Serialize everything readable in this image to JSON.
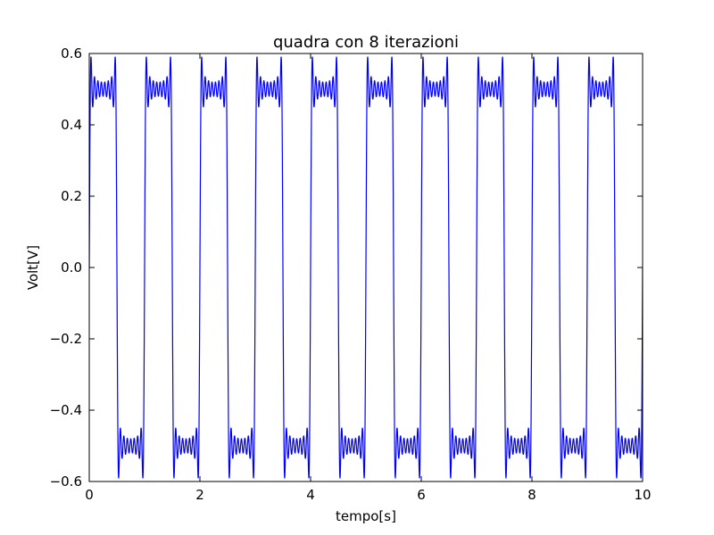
{
  "chart_data": {
    "type": "line",
    "title": "quadra con 8 iterazioni",
    "xlabel": "tempo[s]",
    "ylabel": "Volt[V]",
    "xlim": [
      0,
      10
    ],
    "ylim": [
      -0.6,
      0.6
    ],
    "xticks": [
      0,
      2,
      4,
      6,
      8,
      10
    ],
    "yticks": [
      -0.6,
      -0.4,
      -0.2,
      0.0,
      0.2,
      0.4,
      0.6
    ],
    "xtick_labels": [
      "0",
      "2",
      "4",
      "6",
      "8",
      "10"
    ],
    "ytick_labels": [
      "−0.6",
      "−0.4",
      "−0.2",
      "0.0",
      "0.2",
      "0.4",
      "0.6"
    ],
    "grid": false,
    "series": [
      {
        "color": "#0000ff",
        "function": "fourier_square_wave",
        "amplitude": 0.5,
        "period": 1.0,
        "harmonics": 8,
        "x_start": 0,
        "x_end": 10
      }
    ]
  }
}
